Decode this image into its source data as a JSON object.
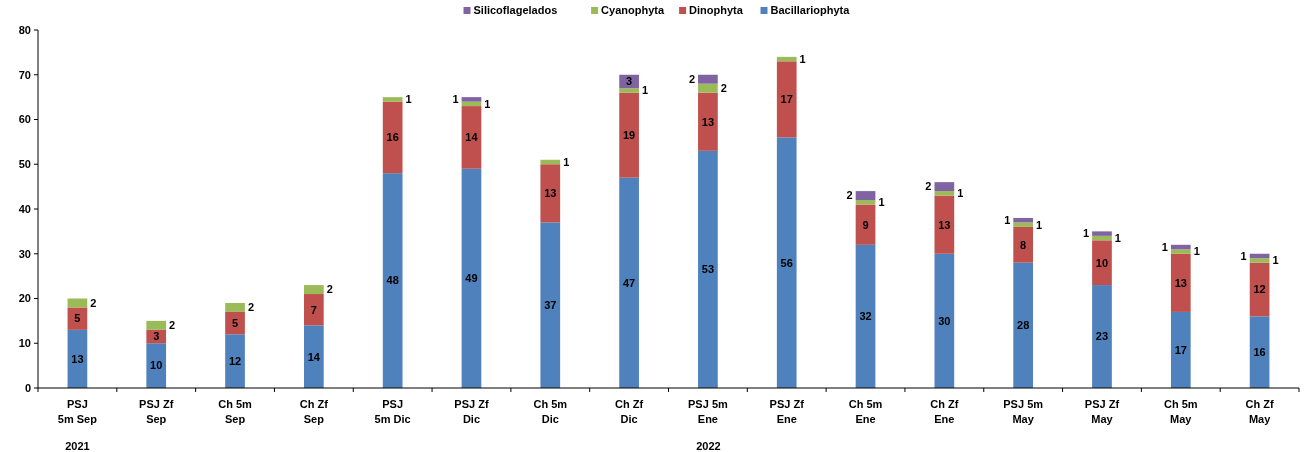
{
  "chart_data": {
    "type": "bar",
    "stacked": true,
    "legend": "top",
    "data_labels": true,
    "categories": [
      "PSJ\n5m Sep",
      "PSJ Zf\nSep",
      "Ch 5m\nSep",
      "Ch Zf\nSep",
      "PSJ\n5m Dic",
      "PSJ Zf\nDic",
      "Ch 5m\nDic",
      "Ch Zf\nDic",
      "PSJ 5m\nEne",
      "PSJ Zf\nEne",
      "Ch 5m\nEne",
      "Ch Zf\nEne",
      "PSJ 5m\nMay",
      "PSJ Zf\nMay",
      "Ch 5m\nMay",
      "Ch Zf\nMay"
    ],
    "series": [
      {
        "name": "Bacillariophyta",
        "color": "#4f81bd",
        "values": [
          13,
          10,
          12,
          14,
          48,
          49,
          37,
          47,
          53,
          56,
          32,
          30,
          28,
          23,
          17,
          16
        ]
      },
      {
        "name": "Dinophyta",
        "color": "#c0504d",
        "values": [
          5,
          3,
          5,
          7,
          16,
          14,
          13,
          19,
          13,
          17,
          9,
          13,
          8,
          10,
          13,
          12
        ]
      },
      {
        "name": "Cyanophyta",
        "color": "#9bbb59",
        "values": [
          2,
          2,
          2,
          2,
          1,
          1,
          1,
          1,
          2,
          1,
          1,
          1,
          1,
          1,
          1,
          1
        ]
      },
      {
        "name": "Silicoflagelados",
        "color": "#8064a2",
        "values": [
          null,
          null,
          null,
          null,
          null,
          1,
          null,
          3,
          2,
          null,
          2,
          2,
          1,
          1,
          1,
          1
        ]
      }
    ],
    "ylim": [
      0,
      80
    ],
    "yticks": [
      0,
      10,
      20,
      30,
      40,
      50,
      60,
      70,
      80
    ],
    "annotations": [
      "2021",
      "2022"
    ]
  }
}
